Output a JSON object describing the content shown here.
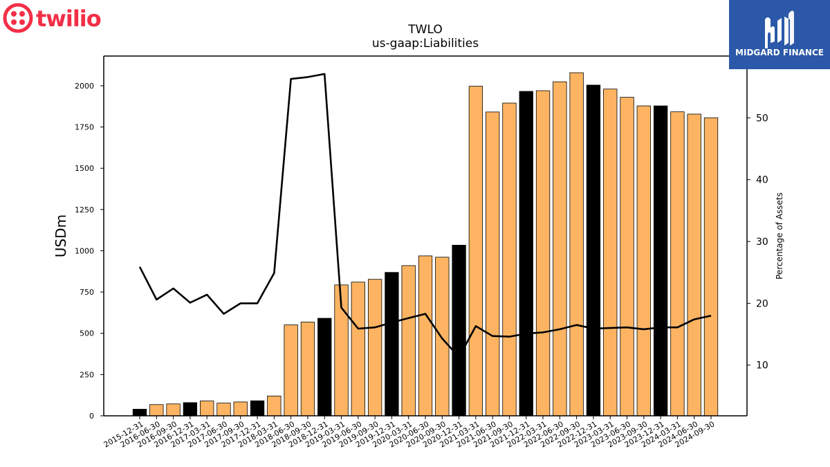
{
  "logos": {
    "left_brand": "twilio",
    "right_brand": "MIDGARD FINANCE",
    "twilio_color": "#f22f46",
    "midgard_color": "#2b58a8"
  },
  "chart_data": {
    "type": "bar",
    "title": "TWLO",
    "subtitle": "us-gaap:Liabilities",
    "ylabel": "USDm",
    "y2label": "Percentage of Assets",
    "ylim": [
      0,
      2180
    ],
    "y2lim": [
      1.8,
      60.0
    ],
    "yticks": [
      0,
      250,
      500,
      750,
      1000,
      1250,
      1500,
      1750,
      2000
    ],
    "y2ticks": [
      10,
      20,
      30,
      40,
      50
    ],
    "bar_colors": {
      "quarter": "#fdb462",
      "year_end": "#000000"
    },
    "categories": [
      "2015-12-31",
      "2016-06-30",
      "2016-09-30",
      "2016-12-31",
      "2017-03-31",
      "2017-06-30",
      "2017-09-30",
      "2017-12-31",
      "2018-03-31",
      "2018-06-30",
      "2018-09-30",
      "2018-12-31",
      "2019-03-31",
      "2019-06-30",
      "2019-09-30",
      "2019-12-31",
      "2020-03-31",
      "2020-06-30",
      "2020-09-30",
      "2020-12-31",
      "2021-03-31",
      "2021-06-30",
      "2021-09-30",
      "2021-12-31",
      "2022-03-31",
      "2022-06-30",
      "2022-09-30",
      "2022-12-31",
      "2023-03-31",
      "2023-06-30",
      "2023-09-30",
      "2023-12-31",
      "2024-03-31",
      "2024-06-30",
      "2024-09-30"
    ],
    "values": [
      40,
      68,
      72,
      80,
      90,
      77,
      84,
      91,
      120,
      551,
      568,
      591,
      793,
      810,
      827,
      869,
      910,
      969,
      961,
      1034,
      1997,
      1841,
      1895,
      1966,
      1970,
      2024,
      2079,
      2004,
      1980,
      1930,
      1878,
      1878,
      1842,
      1828,
      1806
    ],
    "year_end": [
      true,
      false,
      false,
      true,
      false,
      false,
      false,
      true,
      false,
      false,
      false,
      true,
      false,
      false,
      false,
      true,
      false,
      false,
      false,
      true,
      false,
      false,
      false,
      true,
      false,
      false,
      false,
      true,
      false,
      false,
      false,
      true,
      false,
      false,
      false
    ],
    "pct_of_assets": [
      25.9,
      20.6,
      22.4,
      20.1,
      21.4,
      18.3,
      20.0,
      20.0,
      24.9,
      56.3,
      56.6,
      57.1,
      19.3,
      15.9,
      16.1,
      16.9,
      17.6,
      18.3,
      14.3,
      11.3,
      16.3,
      14.7,
      14.6,
      15.1,
      15.3,
      15.8,
      16.5,
      15.9,
      16.0,
      16.1,
      15.8,
      16.1,
      16.1,
      17.4,
      18.0
    ]
  }
}
